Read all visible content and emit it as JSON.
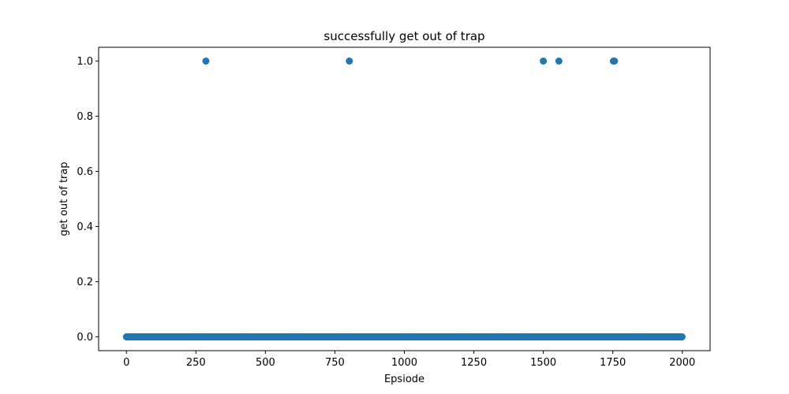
{
  "chart_data": {
    "type": "scatter",
    "title": "successfully get out of trap",
    "xlabel": "Epsiode",
    "ylabel": "get out of trap",
    "xlim": [
      -100,
      2100
    ],
    "ylim": [
      -0.05,
      1.05
    ],
    "x_ticks": [
      0,
      250,
      500,
      750,
      1000,
      1250,
      1500,
      1750,
      2000
    ],
    "x_tick_labels": [
      "0",
      "250",
      "500",
      "750",
      "1000",
      "1250",
      "1500",
      "1750",
      "2000"
    ],
    "y_ticks": [
      0.0,
      0.2,
      0.4,
      0.6,
      0.8,
      1.0
    ],
    "y_tick_labels": [
      "0.0",
      "0.2",
      "0.4",
      "0.6",
      "0.8",
      "1.0"
    ],
    "grid": false,
    "legend": "none",
    "marker_color": "#1f77b4",
    "series": [
      {
        "baseline": {
          "x_start": 0,
          "x_end": 1999,
          "step": 1,
          "y": 0
        },
        "success_episodes": [
          286,
          802,
          1500,
          1556,
          1752,
          1756
        ],
        "success_value": 1
      }
    ]
  }
}
